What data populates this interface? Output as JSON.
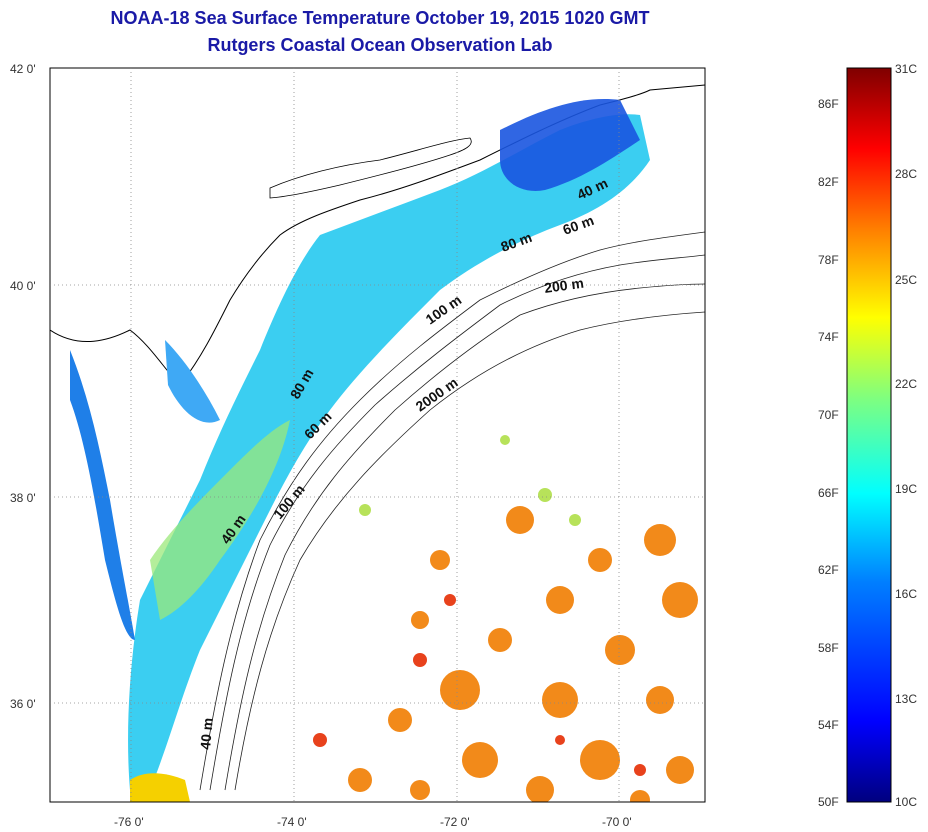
{
  "header": {
    "title": "NOAA-18 Sea Surface Temperature October 19, 2015 1020 GMT",
    "subtitle": "Rutgers Coastal Ocean Observation Lab"
  },
  "map": {
    "lat_ticks": [
      "42 0'",
      "40 0'",
      "38 0'",
      "36 0'"
    ],
    "lon_ticks": [
      "-76 0'",
      "-74 0'",
      "-72 0'",
      "-70 0'"
    ],
    "contour_labels": [
      "40 m",
      "60 m",
      "80 m",
      "200 m",
      "100 m",
      "2000 m",
      "60 m",
      "80 m",
      "100 m",
      "40 m",
      "40 m"
    ]
  },
  "colorbar": {
    "f_labels": [
      "86F",
      "82F",
      "78F",
      "74F",
      "70F",
      "66F",
      "62F",
      "58F",
      "54F",
      "50F"
    ],
    "c_labels": [
      "31C",
      "28C",
      "25C",
      "22C",
      "19C",
      "16C",
      "13C",
      "10C"
    ],
    "colors": [
      "#00007f",
      "#0000ff",
      "#007fff",
      "#00ffff",
      "#7fff7f",
      "#ffff00",
      "#ff7f00",
      "#ff0000",
      "#7f0000"
    ]
  }
}
